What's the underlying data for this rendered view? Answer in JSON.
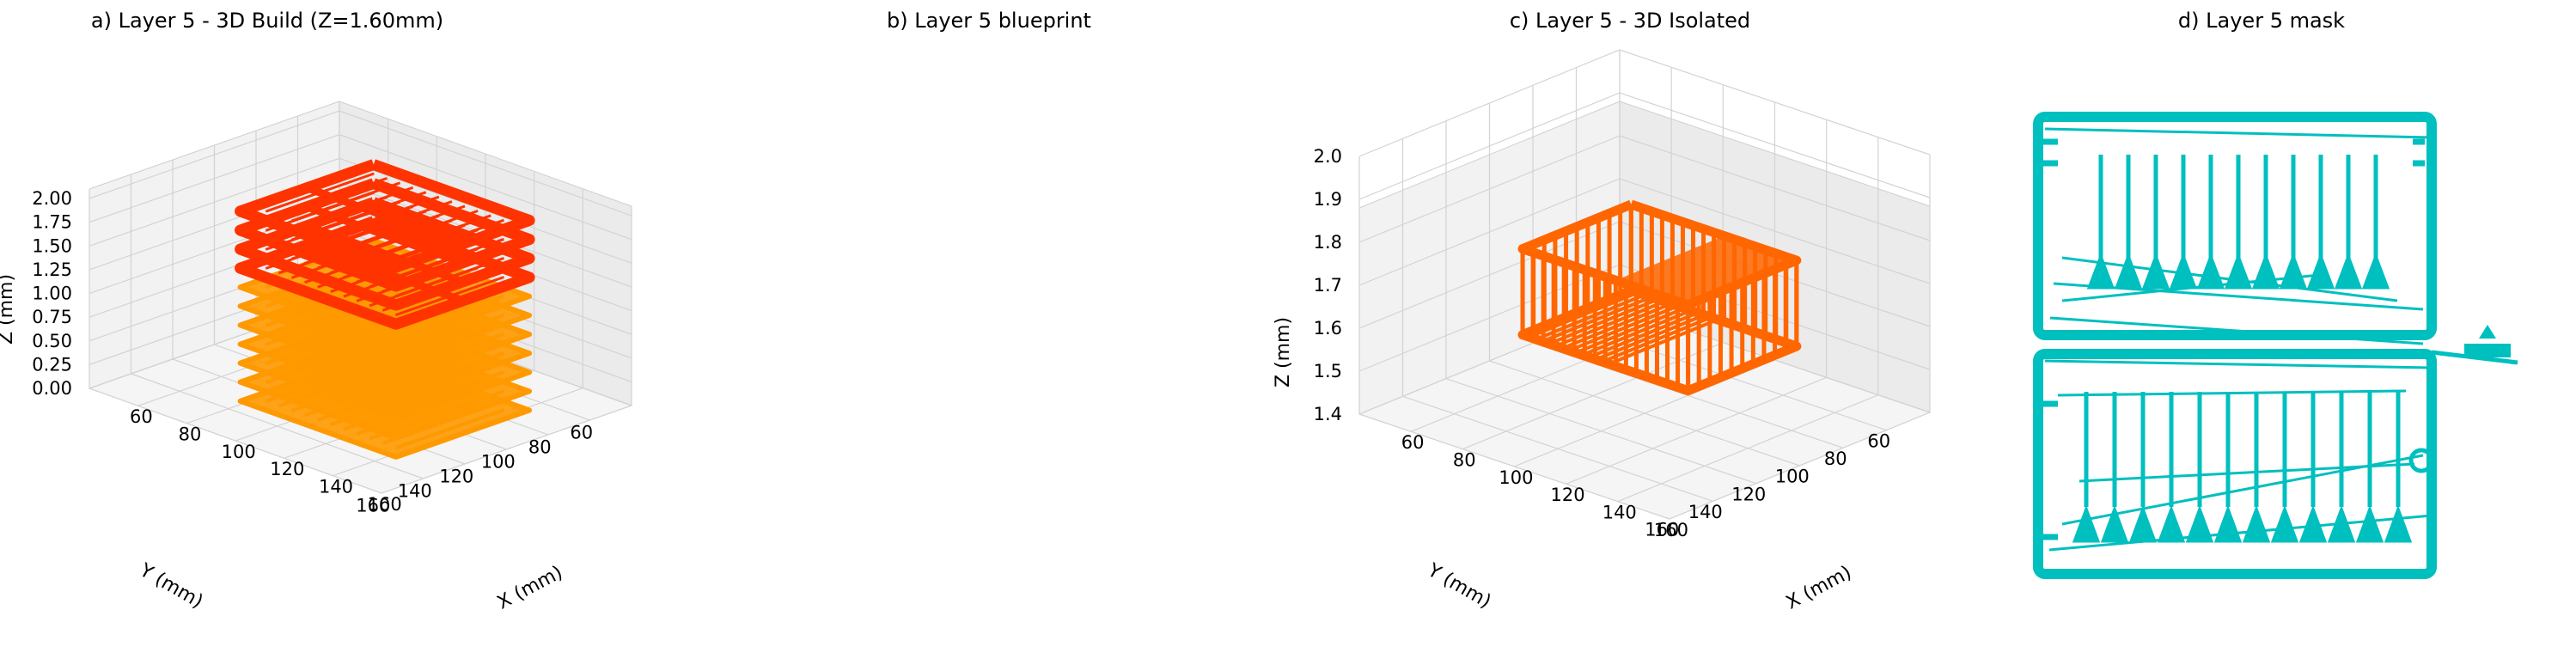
{
  "figure": {
    "panel_a": {
      "title": "a) Layer 5 - 3D Build (Z=1.60mm)",
      "xlabel": "X (mm)",
      "ylabel": "Y (mm)",
      "zlabel": "Z (mm)",
      "x_ticks": [
        "60",
        "80",
        "100",
        "120",
        "140",
        "160"
      ],
      "y_ticks": [
        "60",
        "80",
        "100",
        "120",
        "140",
        "160"
      ],
      "z_ticks": [
        "0.00",
        "0.25",
        "0.50",
        "0.75",
        "1.00",
        "1.25",
        "1.50",
        "1.75",
        "2.00"
      ]
    },
    "panel_b": {
      "title": "b) Layer 5 blueprint"
    },
    "panel_c": {
      "title": "c) Layer 5 - 3D Isolated",
      "xlabel": "X (mm)",
      "ylabel": "Y (mm)",
      "zlabel": "Z (mm)",
      "x_ticks": [
        "60",
        "80",
        "100",
        "120",
        "140",
        "160"
      ],
      "y_ticks": [
        "60",
        "80",
        "100",
        "120",
        "140",
        "160"
      ],
      "z_ticks": [
        "1.4",
        "1.5",
        "1.6",
        "1.7",
        "1.8",
        "1.9",
        "2.0"
      ]
    },
    "panel_d": {
      "title": "d) Layer 5 mask"
    }
  },
  "chart_data": [
    {
      "type": "line",
      "subtype": "3d-toolpath",
      "title": "a) Layer 5 - 3D Build (Z=1.60mm)",
      "xlabel": "X (mm)",
      "ylabel": "Y (mm)",
      "zlabel": "Z (mm)",
      "xlim": [
        50,
        170
      ],
      "ylim": [
        50,
        170
      ],
      "zlim": [
        0,
        2.1
      ],
      "series": [
        {
          "color": "#ff9900",
          "layers_z": [
            0.0,
            0.2,
            0.4,
            0.6,
            0.8,
            1.0,
            1.2
          ]
        },
        {
          "color": "#ff3300",
          "layers_z": [
            1.4,
            1.6,
            1.8,
            2.0
          ]
        }
      ],
      "grid": true
    },
    {
      "type": "other",
      "title": "b) Layer 5 blueprint"
    },
    {
      "type": "line",
      "subtype": "3d-toolpath",
      "title": "c) Layer 5 - 3D Isolated",
      "xlabel": "X (mm)",
      "ylabel": "Y (mm)",
      "zlabel": "Z (mm)",
      "xlim": [
        50,
        170
      ],
      "ylim": [
        50,
        170
      ],
      "zlim": [
        1.4,
        2.0
      ],
      "series": [
        {
          "color": "#ff6600",
          "layers_z": [
            1.6,
            1.8
          ]
        }
      ],
      "grid": true
    },
    {
      "type": "other",
      "title": "d) Layer 5 mask",
      "color": "#00bfbf"
    }
  ]
}
